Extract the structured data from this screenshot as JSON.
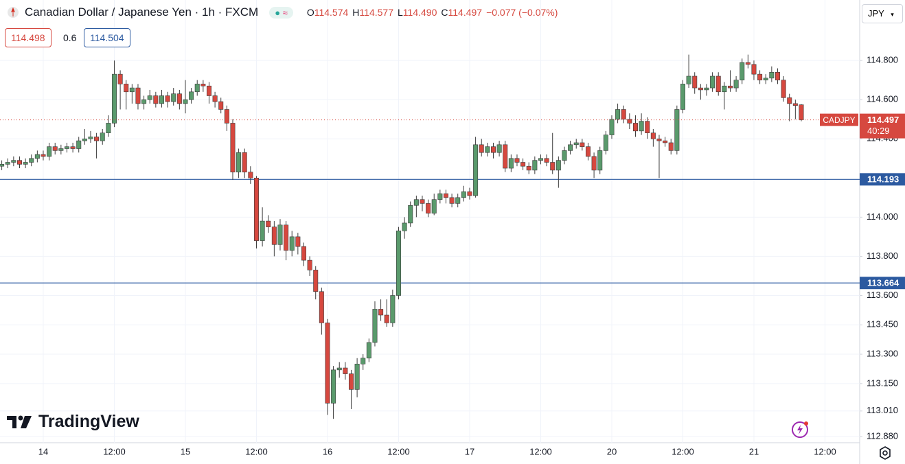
{
  "chart_data": {
    "type": "candlestick",
    "title": "Canadian Dollar / Japanese Yen · 1h · FXCM",
    "ohlc_legend": [
      {
        "key": "O",
        "value": "114.574"
      },
      {
        "key": "H",
        "value": "114.577"
      },
      {
        "key": "L",
        "value": "114.490"
      },
      {
        "key": "C",
        "value": "114.497"
      }
    ],
    "change": "−0.077 (−0.07%)",
    "bid": "114.498",
    "spread": "0.6",
    "ask": "114.504",
    "currency": "JPY",
    "brand": "TradingView",
    "symbol": "CADJPY",
    "countdown": "40:29",
    "up_color": "#5a9a6c",
    "down_color": "#d6483f",
    "level_color": "#2c5aa0",
    "grid": true,
    "ylim": [
      112.848,
      115.109
    ],
    "yticks": [
      {
        "value": 114.8,
        "label": "114.800"
      },
      {
        "value": 114.6,
        "label": "114.600"
      },
      {
        "value": 114.4,
        "label": "114.400"
      },
      {
        "value": 114.0,
        "label": "114.000"
      },
      {
        "value": 113.8,
        "label": "113.800"
      },
      {
        "value": 113.6,
        "label": "113.600"
      },
      {
        "value": 113.45,
        "label": "113.450"
      },
      {
        "value": 113.3,
        "label": "113.300"
      },
      {
        "value": 113.15,
        "label": "113.150"
      },
      {
        "value": 113.01,
        "label": "113.010"
      },
      {
        "value": 112.88,
        "label": "112.880"
      }
    ],
    "levels": [
      114.193,
      113.664
    ],
    "last_price": 114.497,
    "categories": [
      null,
      null,
      null,
      null,
      null,
      null,
      null,
      "14",
      null,
      null,
      null,
      null,
      null,
      null,
      null,
      null,
      null,
      null,
      null,
      "12:00",
      null,
      null,
      null,
      null,
      null,
      null,
      null,
      null,
      null,
      null,
      null,
      "15",
      null,
      null,
      null,
      null,
      null,
      null,
      null,
      null,
      null,
      null,
      null,
      "12:00",
      null,
      null,
      null,
      null,
      null,
      null,
      null,
      null,
      null,
      null,
      null,
      "16",
      null,
      null,
      null,
      null,
      null,
      null,
      null,
      null,
      null,
      null,
      null,
      "12:00",
      null,
      null,
      null,
      null,
      null,
      null,
      null,
      null,
      null,
      null,
      null,
      "17",
      null,
      null,
      null,
      null,
      null,
      null,
      null,
      null,
      null,
      null,
      null,
      "12:00",
      null,
      null,
      null,
      null,
      null,
      null,
      null,
      null,
      null,
      null,
      null,
      "20",
      null,
      null,
      null,
      null,
      null,
      null,
      null,
      null,
      null,
      null,
      null,
      "12:00",
      null,
      null,
      null,
      null,
      null,
      null,
      null,
      null,
      null,
      null,
      null,
      "21",
      null,
      null,
      null,
      null,
      null,
      null,
      null,
      null,
      null,
      null,
      null,
      "12:00"
    ],
    "open": [
      114.26,
      114.27,
      114.28,
      114.29,
      114.27,
      114.28,
      114.3,
      114.32,
      114.31,
      114.36,
      114.34,
      114.35,
      114.36,
      114.35,
      114.39,
      114.4,
      114.41,
      114.39,
      114.43,
      114.48,
      114.73,
      114.68,
      114.64,
      114.66,
      114.58,
      114.6,
      114.62,
      114.58,
      114.62,
      114.59,
      114.63,
      114.58,
      114.6,
      114.64,
      114.68,
      114.67,
      114.62,
      114.59,
      114.55,
      114.48,
      114.23,
      114.33,
      114.23,
      114.2,
      113.88,
      113.98,
      113.95,
      113.86,
      113.96,
      113.83,
      113.9,
      113.85,
      113.78,
      113.73,
      113.62,
      113.46,
      113.05,
      113.22,
      113.23,
      113.2,
      113.12,
      113.25,
      113.28,
      113.36,
      113.53,
      113.5,
      113.46,
      113.6,
      113.93,
      113.97,
      114.06,
      114.09,
      114.07,
      114.02,
      114.09,
      114.12,
      114.1,
      114.07,
      114.1,
      114.13,
      114.11,
      114.37,
      114.33,
      114.36,
      114.33,
      114.37,
      114.25,
      114.3,
      114.28,
      114.26,
      114.24,
      114.29,
      114.3,
      114.28,
      114.24,
      114.29,
      114.34,
      114.37,
      114.38,
      114.36,
      114.31,
      114.24,
      114.34,
      114.42,
      114.5,
      114.55,
      114.5,
      114.48,
      114.44,
      114.49,
      114.43,
      114.4,
      114.39,
      114.38,
      114.34,
      114.55,
      114.68,
      114.72,
      114.66,
      114.65,
      114.66,
      114.72,
      114.64,
      114.67,
      114.66,
      114.7,
      114.79,
      114.78,
      114.73,
      114.7,
      114.71,
      114.74,
      114.7,
      114.61,
      114.58,
      114.574,
      null,
      null,
      null,
      null
    ],
    "high": [
      114.29,
      114.3,
      114.31,
      114.31,
      114.3,
      114.32,
      114.34,
      114.34,
      114.38,
      114.38,
      114.37,
      114.38,
      114.38,
      114.41,
      114.45,
      114.44,
      114.43,
      114.45,
      114.52,
      114.8,
      114.75,
      114.7,
      114.68,
      114.68,
      114.62,
      114.65,
      114.64,
      114.65,
      114.64,
      114.66,
      114.65,
      114.7,
      114.66,
      114.7,
      114.7,
      114.69,
      114.64,
      114.61,
      114.57,
      114.5,
      114.35,
      114.35,
      114.26,
      114.21,
      114.05,
      114.01,
      113.98,
      113.99,
      113.98,
      113.93,
      113.92,
      113.87,
      113.8,
      113.75,
      113.64,
      113.48,
      113.24,
      113.26,
      113.26,
      113.22,
      113.28,
      113.3,
      113.38,
      113.57,
      113.58,
      113.58,
      113.63,
      113.95,
      114.0,
      114.08,
      114.11,
      114.11,
      114.09,
      114.12,
      114.14,
      114.14,
      114.12,
      114.12,
      114.16,
      114.15,
      114.41,
      114.4,
      114.38,
      114.38,
      114.39,
      114.39,
      114.32,
      114.32,
      114.3,
      114.28,
      114.31,
      114.32,
      114.32,
      114.43,
      114.31,
      114.36,
      114.39,
      114.4,
      114.4,
      114.38,
      114.33,
      114.36,
      114.44,
      114.52,
      114.58,
      114.57,
      114.53,
      114.52,
      114.53,
      114.51,
      114.45,
      114.42,
      114.41,
      114.4,
      114.57,
      114.7,
      114.83,
      114.74,
      114.68,
      114.68,
      114.74,
      114.74,
      114.69,
      114.75,
      114.72,
      114.81,
      114.83,
      114.8,
      114.75,
      114.73,
      114.77,
      114.76,
      114.72,
      114.63,
      114.6,
      114.577,
      null,
      null,
      null,
      null
    ],
    "low": [
      114.24,
      114.25,
      114.26,
      114.25,
      114.25,
      114.26,
      114.28,
      114.29,
      114.29,
      114.32,
      114.32,
      114.33,
      114.33,
      114.33,
      114.37,
      114.38,
      114.3,
      114.37,
      114.41,
      114.46,
      114.55,
      114.55,
      114.58,
      114.55,
      114.55,
      114.58,
      114.56,
      114.56,
      114.56,
      114.57,
      114.55,
      114.53,
      114.58,
      114.62,
      114.64,
      114.58,
      114.56,
      114.53,
      114.44,
      114.19,
      114.2,
      114.2,
      114.17,
      113.84,
      113.85,
      113.92,
      113.8,
      113.83,
      113.78,
      113.8,
      113.81,
      113.75,
      113.7,
      113.58,
      113.4,
      112.99,
      112.97,
      113.18,
      113.17,
      113.02,
      113.08,
      113.22,
      113.26,
      113.34,
      113.47,
      113.44,
      113.44,
      113.58,
      113.89,
      113.95,
      114.0,
      114.03,
      114.0,
      114.01,
      114.07,
      114.07,
      114.05,
      114.05,
      114.08,
      114.09,
      114.1,
      114.31,
      114.31,
      114.3,
      114.31,
      114.23,
      114.23,
      114.26,
      114.24,
      114.22,
      114.22,
      114.27,
      114.26,
      114.22,
      114.15,
      114.27,
      114.32,
      114.35,
      114.34,
      114.29,
      114.2,
      114.22,
      114.32,
      114.4,
      114.48,
      114.48,
      114.45,
      114.41,
      114.42,
      114.4,
      114.36,
      114.2,
      114.36,
      114.32,
      114.32,
      114.53,
      114.66,
      114.63,
      114.6,
      114.62,
      114.64,
      114.62,
      114.55,
      114.64,
      114.64,
      114.68,
      114.76,
      114.7,
      114.68,
      114.68,
      114.69,
      114.68,
      114.59,
      114.49,
      114.5,
      114.49,
      null,
      null,
      null,
      null
    ],
    "close": [
      114.27,
      114.28,
      114.29,
      114.27,
      114.28,
      114.3,
      114.32,
      114.31,
      114.36,
      114.34,
      114.35,
      114.36,
      114.35,
      114.39,
      114.4,
      114.41,
      114.39,
      114.43,
      114.48,
      114.73,
      114.68,
      114.64,
      114.66,
      114.58,
      114.6,
      114.62,
      114.58,
      114.62,
      114.59,
      114.63,
      114.58,
      114.6,
      114.64,
      114.68,
      114.67,
      114.62,
      114.59,
      114.55,
      114.48,
      114.23,
      114.33,
      114.23,
      114.2,
      113.88,
      113.98,
      113.95,
      113.86,
      113.96,
      113.83,
      113.9,
      113.85,
      113.78,
      113.73,
      113.62,
      113.46,
      113.05,
      113.22,
      113.23,
      113.2,
      113.12,
      113.25,
      113.28,
      113.36,
      113.53,
      113.5,
      113.46,
      113.6,
      113.93,
      113.97,
      114.06,
      114.09,
      114.07,
      114.02,
      114.09,
      114.12,
      114.1,
      114.07,
      114.1,
      114.13,
      114.11,
      114.37,
      114.33,
      114.36,
      114.33,
      114.37,
      114.25,
      114.3,
      114.28,
      114.26,
      114.24,
      114.29,
      114.3,
      114.28,
      114.24,
      114.29,
      114.34,
      114.37,
      114.38,
      114.36,
      114.31,
      114.24,
      114.34,
      114.42,
      114.5,
      114.55,
      114.5,
      114.48,
      114.44,
      114.49,
      114.43,
      114.4,
      114.39,
      114.38,
      114.34,
      114.55,
      114.68,
      114.72,
      114.66,
      114.65,
      114.66,
      114.72,
      114.64,
      114.67,
      114.66,
      114.7,
      114.79,
      114.78,
      114.73,
      114.7,
      114.71,
      114.74,
      114.7,
      114.61,
      114.58,
      114.57,
      114.497,
      null,
      null,
      null,
      null
    ]
  }
}
